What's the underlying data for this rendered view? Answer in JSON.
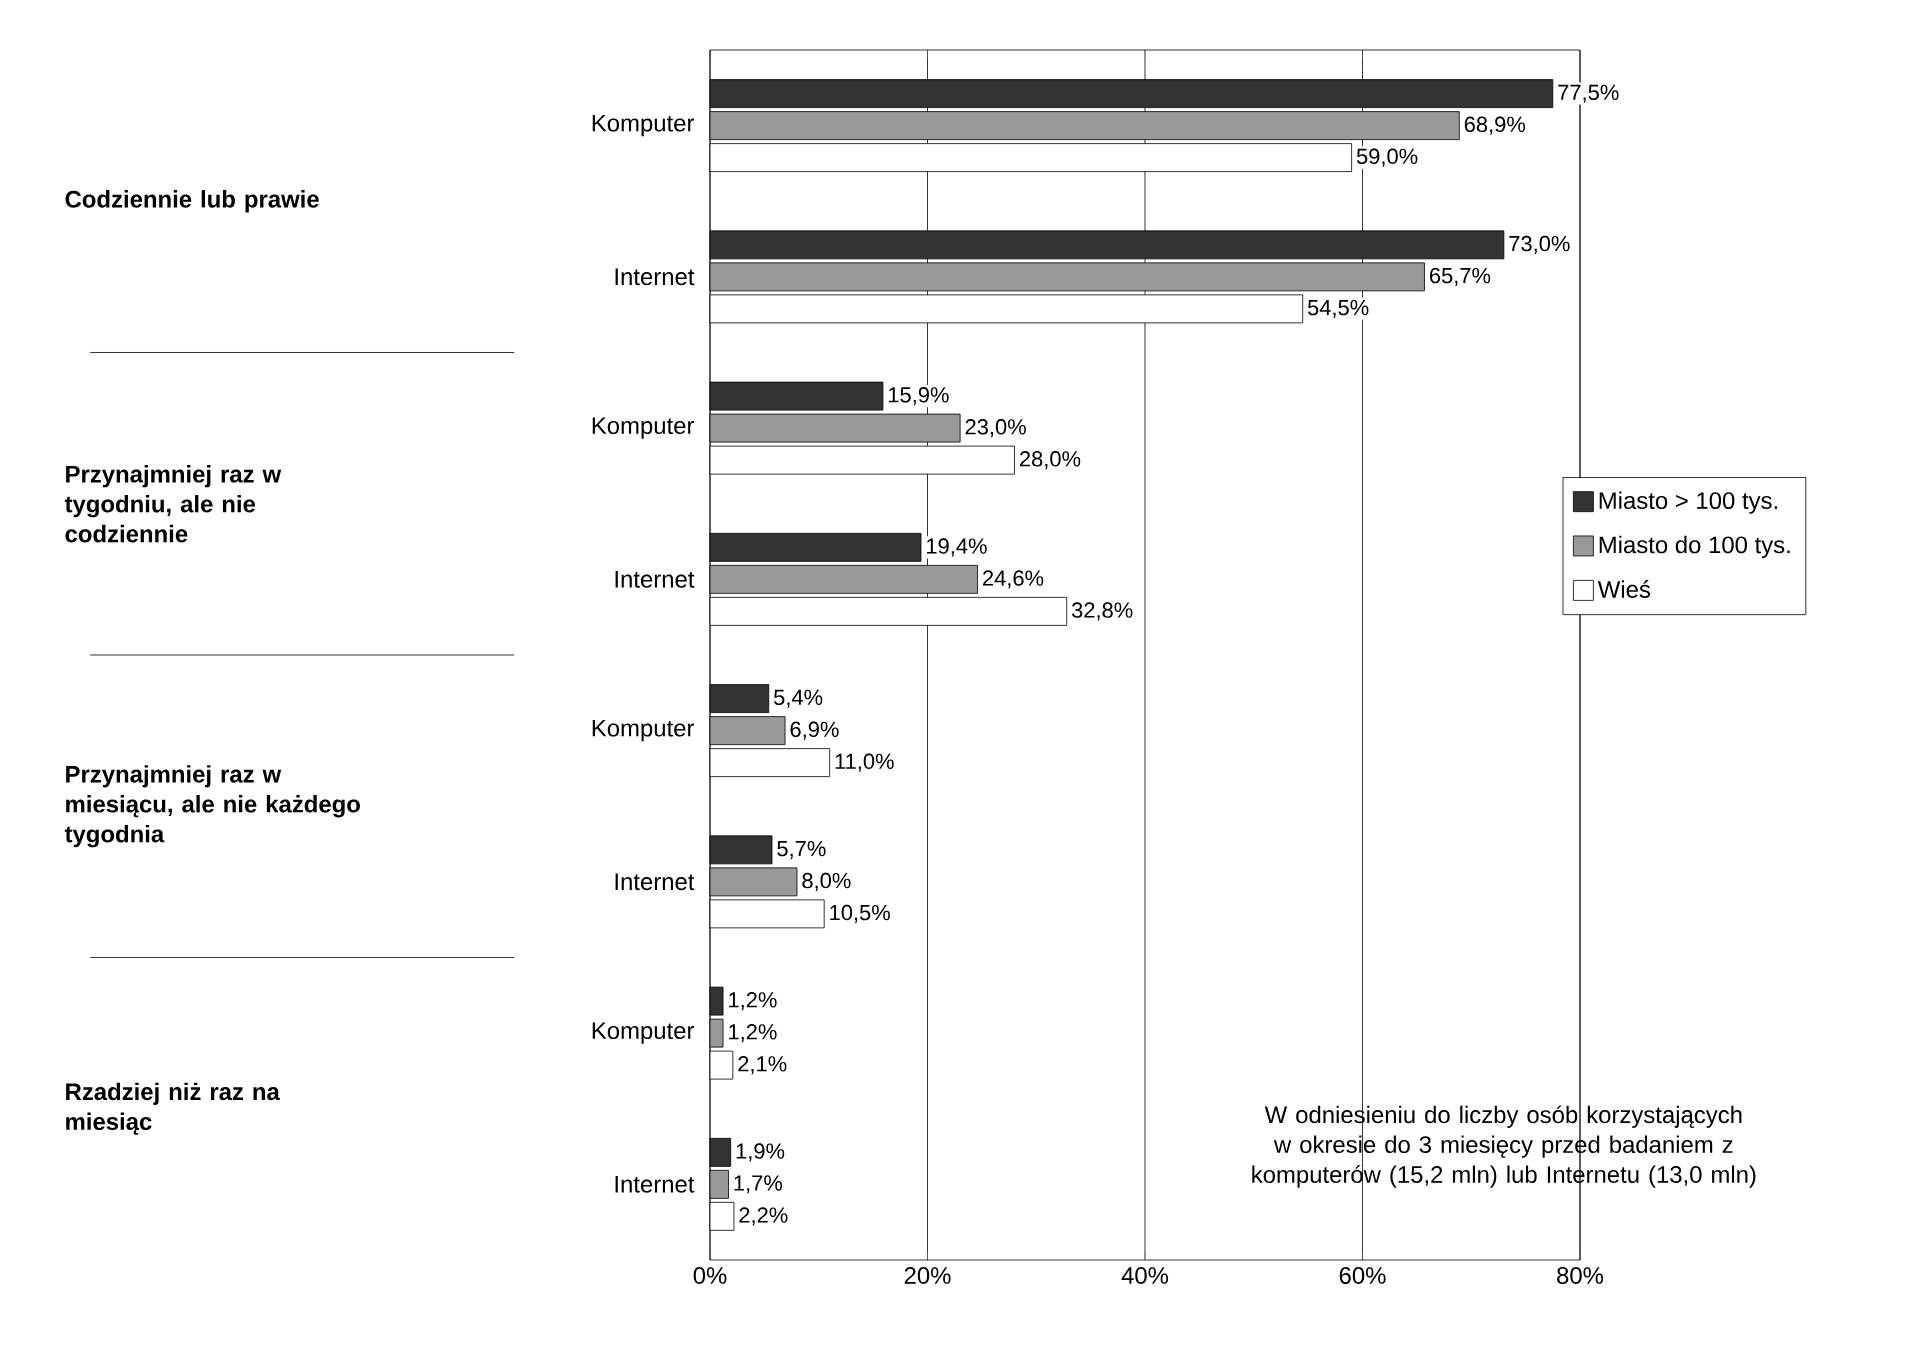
{
  "chart_data": {
    "type": "bar",
    "orientation": "horizontal",
    "categories": [
      "Komputer",
      "Internet",
      "Komputer",
      "Internet",
      "Komputer",
      "Internet",
      "Komputer",
      "Internet"
    ],
    "series": [
      {
        "name": "Miasto > 100 tys.",
        "color": "#333333",
        "values": [
          77.5,
          73.0,
          15.9,
          19.4,
          5.4,
          5.7,
          1.2,
          1.9
        ],
        "value_labels": [
          "77,5%",
          "73,0%",
          "15,9%",
          "19,4%",
          "5,4%",
          "5,7%",
          "1,2%",
          "1,9%"
        ]
      },
      {
        "name": "Miasto do 100 tys.",
        "color": "#999999",
        "values": [
          68.9,
          65.7,
          23.0,
          24.6,
          6.9,
          8.0,
          1.2,
          1.7
        ],
        "value_labels": [
          "68,9%",
          "65,7%",
          "23,0%",
          "24,6%",
          "6,9%",
          "8,0%",
          "1,2%",
          "1,7%"
        ]
      },
      {
        "name": "Wieś",
        "color": "#ffffff",
        "values": [
          59.0,
          54.5,
          28.0,
          32.8,
          11.0,
          10.5,
          2.1,
          2.2
        ],
        "value_labels": [
          "59,0%",
          "54,5%",
          "28,0%",
          "32,8%",
          "11,0%",
          "10,5%",
          "2,1%",
          "2,2%"
        ]
      }
    ],
    "xlim": [
      0,
      80
    ],
    "xticks": [
      {
        "value": 0,
        "label": "0%"
      },
      {
        "value": 20,
        "label": "20%"
      },
      {
        "value": 40,
        "label": "40%"
      },
      {
        "value": 60,
        "label": "60%"
      },
      {
        "value": 80,
        "label": "80%"
      }
    ],
    "grid": "x",
    "legend": "right",
    "annotations": [
      "Codziennie lub prawie",
      "Przynajmniej raz w tygodniu, ale nie codziennie",
      "Przynajmniej raz w miesiącu, ale nie każdego tygodnia",
      "Rzadziej niż raz na miesiąc",
      "W odniesieniu do liczby osób korzystających w okresie do 3 miesięcy przed badaniem z komputerów (15,2 mln) lub Internetu (13,0 mln)"
    ]
  }
}
